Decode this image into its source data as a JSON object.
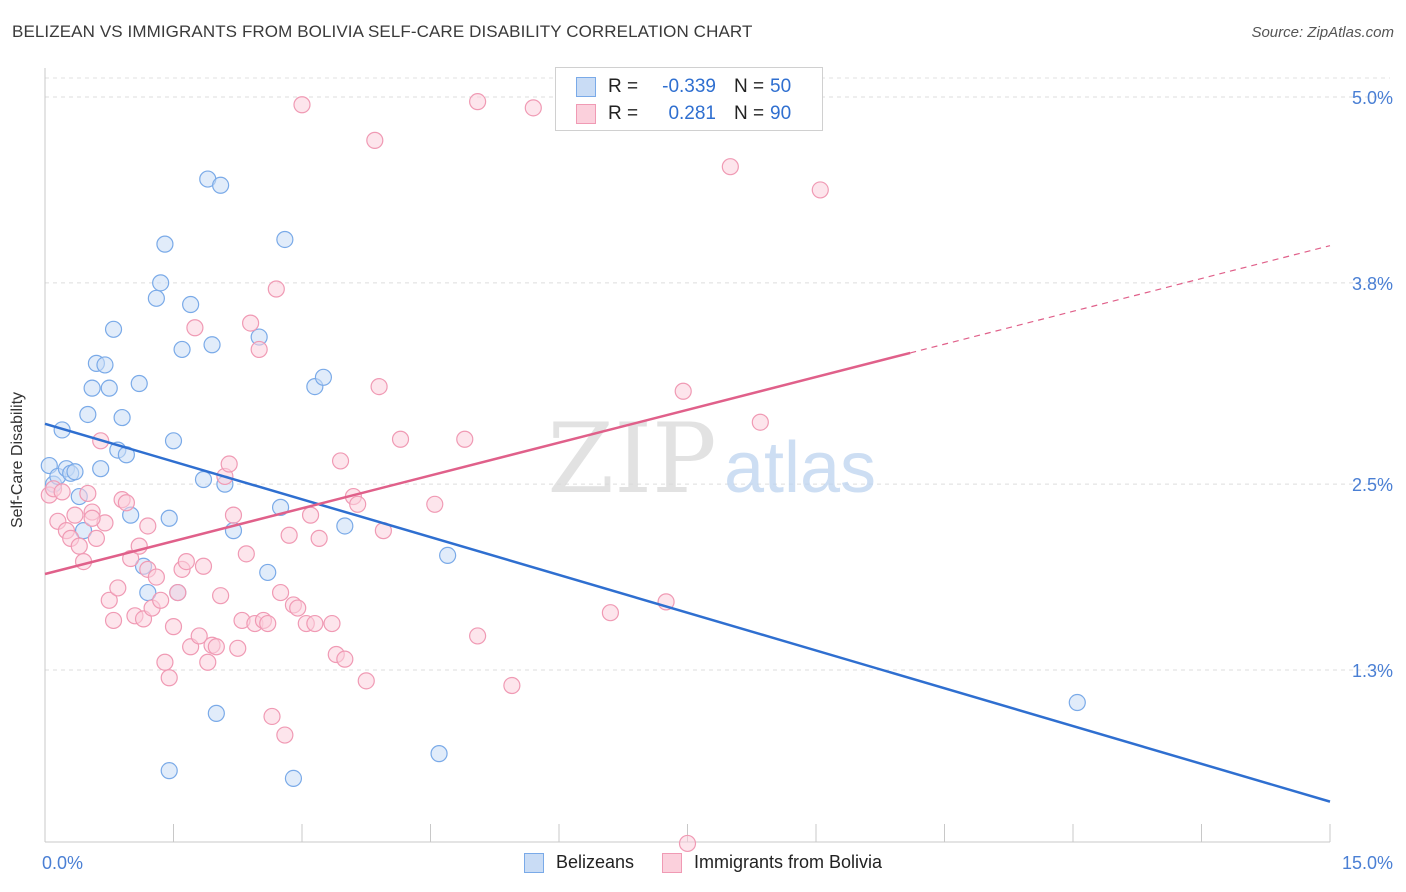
{
  "title": "BELIZEAN VS IMMIGRANTS FROM BOLIVIA SELF-CARE DISABILITY CORRELATION CHART",
  "source": "Source: ZipAtlas.com",
  "watermark": {
    "zip": "ZIP",
    "atlas": "atlas"
  },
  "legend": {
    "rows": [
      {
        "r_label": "R =",
        "r_value": "-0.339",
        "n_label": "N =",
        "n_value": "50",
        "color": "#7aaae8",
        "fill": "#c9dcf5"
      },
      {
        "r_label": "R =",
        "r_value": " 0.281",
        "n_label": "N =",
        "n_value": "90",
        "color": "#f09ab4",
        "fill": "#fbd0dc"
      }
    ]
  },
  "bottom_legend": [
    "Belizeans",
    "Immigrants from Bolivia"
  ],
  "chart_data": {
    "type": "scatter",
    "xlabel": "",
    "ylabel": "Self-Care Disability",
    "xlim": [
      0,
      15
    ],
    "ylim": [
      0,
      5.2
    ],
    "x_tick_labels": [
      {
        "value": 0,
        "label": "0.0%"
      },
      {
        "value": 15,
        "label": "15.0%"
      }
    ],
    "y_tick_labels": [
      {
        "value": 1.3,
        "label": "1.3%"
      },
      {
        "value": 2.5,
        "label": "2.5%"
      },
      {
        "value": 3.8,
        "label": "3.8%"
      },
      {
        "value": 5.0,
        "label": "5.0%"
      }
    ],
    "x_minor_ticks": [
      0,
      1.5,
      3,
      4.5,
      6,
      7.5,
      9,
      10.5,
      12,
      13.5,
      15
    ],
    "grid": true,
    "series": [
      {
        "name": "Belizeans",
        "color": "#7aaae8",
        "fill": "#c9dcf5",
        "line_color": "#2f6fd0",
        "trend": {
          "x": [
            0,
            15
          ],
          "y": [
            2.89,
            0.45
          ]
        },
        "points": [
          {
            "x": 0.05,
            "y": 2.62
          },
          {
            "x": 0.1,
            "y": 2.5
          },
          {
            "x": 0.15,
            "y": 2.55
          },
          {
            "x": 0.2,
            "y": 2.85
          },
          {
            "x": 0.25,
            "y": 2.6
          },
          {
            "x": 0.3,
            "y": 2.57
          },
          {
            "x": 0.35,
            "y": 2.58
          },
          {
            "x": 0.4,
            "y": 2.42
          },
          {
            "x": 0.45,
            "y": 2.2
          },
          {
            "x": 0.5,
            "y": 2.95
          },
          {
            "x": 0.55,
            "y": 3.12
          },
          {
            "x": 0.6,
            "y": 3.28
          },
          {
            "x": 0.65,
            "y": 2.6
          },
          {
            "x": 0.7,
            "y": 3.27
          },
          {
            "x": 0.75,
            "y": 3.12
          },
          {
            "x": 0.8,
            "y": 3.5
          },
          {
            "x": 0.85,
            "y": 2.72
          },
          {
            "x": 0.9,
            "y": 2.93
          },
          {
            "x": 0.95,
            "y": 2.69
          },
          {
            "x": 1.0,
            "y": 2.3
          },
          {
            "x": 1.1,
            "y": 3.15
          },
          {
            "x": 1.15,
            "y": 1.97
          },
          {
            "x": 1.2,
            "y": 1.8
          },
          {
            "x": 1.3,
            "y": 3.7
          },
          {
            "x": 1.35,
            "y": 3.8
          },
          {
            "x": 1.4,
            "y": 4.05
          },
          {
            "x": 1.45,
            "y": 2.28
          },
          {
            "x": 1.5,
            "y": 2.78
          },
          {
            "x": 1.45,
            "y": 0.65
          },
          {
            "x": 1.6,
            "y": 3.37
          },
          {
            "x": 1.55,
            "y": 1.8
          },
          {
            "x": 1.7,
            "y": 3.66
          },
          {
            "x": 1.85,
            "y": 2.53
          },
          {
            "x": 1.9,
            "y": 4.47
          },
          {
            "x": 1.95,
            "y": 3.4
          },
          {
            "x": 2.0,
            "y": 1.02
          },
          {
            "x": 2.05,
            "y": 4.43
          },
          {
            "x": 2.1,
            "y": 2.5
          },
          {
            "x": 2.2,
            "y": 2.2
          },
          {
            "x": 2.5,
            "y": 3.45
          },
          {
            "x": 2.6,
            "y": 1.93
          },
          {
            "x": 2.75,
            "y": 2.35
          },
          {
            "x": 2.8,
            "y": 4.08
          },
          {
            "x": 2.9,
            "y": 0.6
          },
          {
            "x": 3.15,
            "y": 3.13
          },
          {
            "x": 3.25,
            "y": 3.19
          },
          {
            "x": 3.5,
            "y": 2.23
          },
          {
            "x": 4.6,
            "y": 0.76
          },
          {
            "x": 4.7,
            "y": 2.04
          },
          {
            "x": 12.05,
            "y": 1.09
          }
        ]
      },
      {
        "name": "Immigrants from Bolivia",
        "color": "#f09ab4",
        "fill": "#fbd0dc",
        "line_color": "#e0608a",
        "trend": {
          "x": [
            0,
            15
          ],
          "y": [
            1.92,
            4.04
          ],
          "solid_until": 10.1
        },
        "points": [
          {
            "x": 0.05,
            "y": 2.43
          },
          {
            "x": 0.1,
            "y": 2.47
          },
          {
            "x": 0.15,
            "y": 2.26
          },
          {
            "x": 0.2,
            "y": 2.45
          },
          {
            "x": 0.25,
            "y": 2.2
          },
          {
            "x": 0.3,
            "y": 2.15
          },
          {
            "x": 0.35,
            "y": 2.3
          },
          {
            "x": 0.4,
            "y": 2.1
          },
          {
            "x": 0.45,
            "y": 2.0
          },
          {
            "x": 0.5,
            "y": 2.44
          },
          {
            "x": 0.55,
            "y": 2.32
          },
          {
            "x": 0.6,
            "y": 2.15
          },
          {
            "x": 0.65,
            "y": 2.78
          },
          {
            "x": 0.7,
            "y": 2.25
          },
          {
            "x": 0.75,
            "y": 1.75
          },
          {
            "x": 0.8,
            "y": 1.62
          },
          {
            "x": 0.85,
            "y": 1.83
          },
          {
            "x": 0.9,
            "y": 2.4
          },
          {
            "x": 0.95,
            "y": 2.38
          },
          {
            "x": 1.0,
            "y": 2.02
          },
          {
            "x": 1.05,
            "y": 1.65
          },
          {
            "x": 1.1,
            "y": 2.1
          },
          {
            "x": 1.15,
            "y": 1.63
          },
          {
            "x": 1.2,
            "y": 1.95
          },
          {
            "x": 1.25,
            "y": 1.7
          },
          {
            "x": 1.3,
            "y": 1.9
          },
          {
            "x": 1.35,
            "y": 1.75
          },
          {
            "x": 1.4,
            "y": 1.35
          },
          {
            "x": 1.45,
            "y": 1.25
          },
          {
            "x": 1.5,
            "y": 1.58
          },
          {
            "x": 1.55,
            "y": 1.8
          },
          {
            "x": 1.6,
            "y": 1.95
          },
          {
            "x": 1.65,
            "y": 2.0
          },
          {
            "x": 1.7,
            "y": 1.45
          },
          {
            "x": 1.75,
            "y": 3.51
          },
          {
            "x": 1.8,
            "y": 1.52
          },
          {
            "x": 1.85,
            "y": 1.97
          },
          {
            "x": 1.9,
            "y": 1.35
          },
          {
            "x": 1.95,
            "y": 1.46
          },
          {
            "x": 2.0,
            "y": 1.45
          },
          {
            "x": 2.05,
            "y": 1.78
          },
          {
            "x": 2.1,
            "y": 2.55
          },
          {
            "x": 2.15,
            "y": 2.63
          },
          {
            "x": 2.2,
            "y": 2.3
          },
          {
            "x": 2.25,
            "y": 1.44
          },
          {
            "x": 2.3,
            "y": 1.62
          },
          {
            "x": 2.35,
            "y": 2.05
          },
          {
            "x": 2.4,
            "y": 3.54
          },
          {
            "x": 2.45,
            "y": 1.6
          },
          {
            "x": 2.5,
            "y": 3.37
          },
          {
            "x": 2.55,
            "y": 1.62
          },
          {
            "x": 2.6,
            "y": 1.6
          },
          {
            "x": 2.65,
            "y": 1.0
          },
          {
            "x": 2.7,
            "y": 3.76
          },
          {
            "x": 2.75,
            "y": 1.8
          },
          {
            "x": 2.8,
            "y": 0.88
          },
          {
            "x": 2.85,
            "y": 2.17
          },
          {
            "x": 2.9,
            "y": 1.72
          },
          {
            "x": 2.95,
            "y": 1.7
          },
          {
            "x": 3.0,
            "y": 4.95
          },
          {
            "x": 3.05,
            "y": 1.6
          },
          {
            "x": 3.1,
            "y": 2.3
          },
          {
            "x": 3.15,
            "y": 1.6
          },
          {
            "x": 3.2,
            "y": 2.15
          },
          {
            "x": 3.35,
            "y": 1.6
          },
          {
            "x": 3.4,
            "y": 1.4
          },
          {
            "x": 3.45,
            "y": 2.65
          },
          {
            "x": 3.5,
            "y": 1.37
          },
          {
            "x": 3.6,
            "y": 2.42
          },
          {
            "x": 3.65,
            "y": 2.37
          },
          {
            "x": 3.75,
            "y": 1.23
          },
          {
            "x": 3.85,
            "y": 4.72
          },
          {
            "x": 3.9,
            "y": 3.13
          },
          {
            "x": 3.95,
            "y": 2.2
          },
          {
            "x": 4.15,
            "y": 2.79
          },
          {
            "x": 4.55,
            "y": 2.37
          },
          {
            "x": 4.9,
            "y": 2.79
          },
          {
            "x": 5.05,
            "y": 1.52
          },
          {
            "x": 5.05,
            "y": 4.97
          },
          {
            "x": 5.45,
            "y": 1.2
          },
          {
            "x": 5.7,
            "y": 4.93
          },
          {
            "x": 6.6,
            "y": 1.67
          },
          {
            "x": 7.25,
            "y": 1.74
          },
          {
            "x": 7.45,
            "y": 3.1
          },
          {
            "x": 7.5,
            "y": 0.18
          },
          {
            "x": 8.0,
            "y": 4.55
          },
          {
            "x": 8.35,
            "y": 2.9
          },
          {
            "x": 9.05,
            "y": 4.4
          },
          {
            "x": 0.55,
            "y": 2.28
          },
          {
            "x": 1.2,
            "y": 2.23
          }
        ]
      }
    ]
  }
}
